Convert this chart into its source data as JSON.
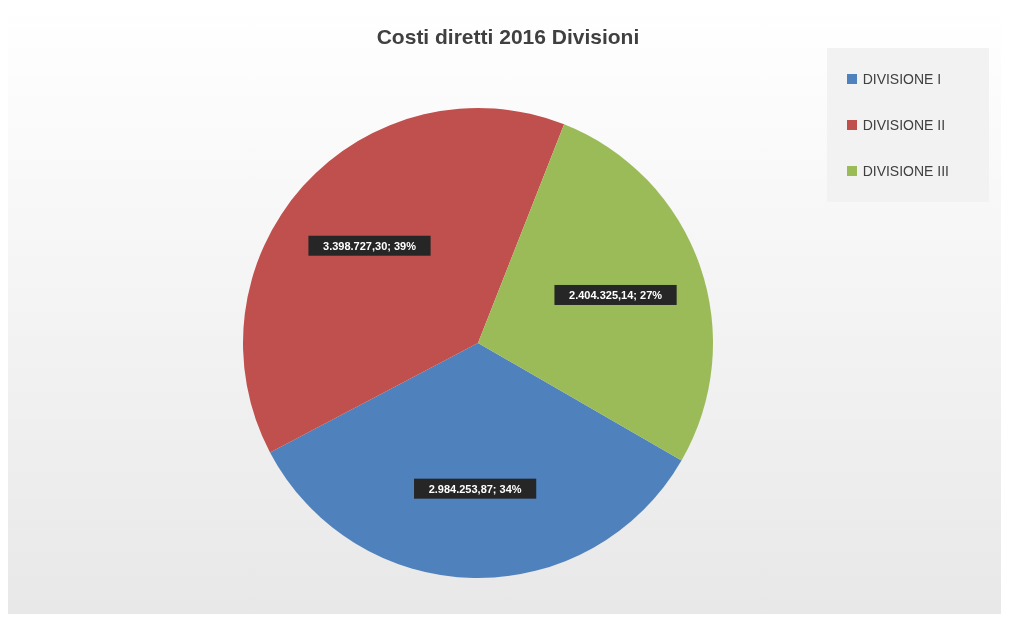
{
  "chart_data": {
    "type": "pie",
    "title": "Costi diretti 2016 Divisioni",
    "categories": [
      "DIVISIONE I",
      "DIVISIONE II",
      "DIVISIONE III"
    ],
    "values": [
      2984253.87,
      3398727.3,
      2404325.14
    ],
    "colors": [
      "#4f81bd",
      "#c0504d",
      "#9bbb59"
    ],
    "value_labels": [
      "2.984.253,87; 34%",
      "3.398.727,30; 39%",
      "2.404.325,14; 27%"
    ],
    "legend": "top right"
  }
}
